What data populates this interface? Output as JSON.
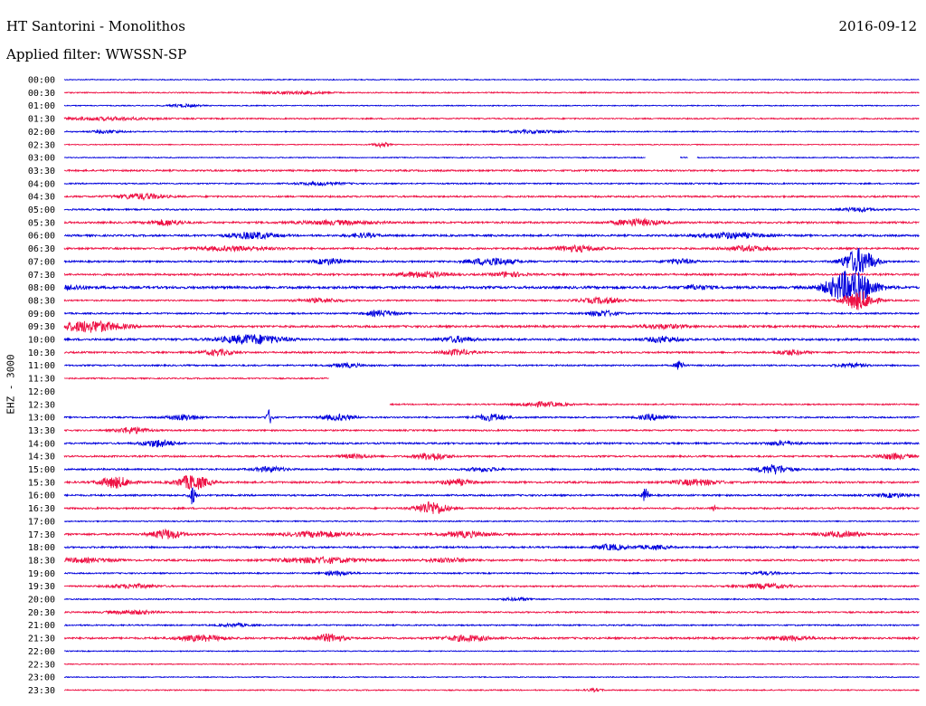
{
  "header": {
    "station": "HT Santorini - Monolithos",
    "date": "2016-09-12",
    "filter": "Applied filter: WWSSN-SP"
  },
  "colors": {
    "even": "#0000dd",
    "odd": "#ee1144"
  },
  "chart_data": {
    "type": "line",
    "title": "HT Santorini - Monolithos",
    "ylabel": "EHZ - 3000",
    "categories": [
      "00:00",
      "00:30",
      "01:00",
      "01:30",
      "02:00",
      "02:30",
      "03:00",
      "03:30",
      "04:00",
      "04:30",
      "05:00",
      "05:30",
      "06:00",
      "06:30",
      "07:00",
      "07:30",
      "08:00",
      "08:30",
      "09:00",
      "09:30",
      "10:00",
      "10:30",
      "11:00",
      "11:30",
      "12:00",
      "12:30",
      "13:00",
      "13:30",
      "14:00",
      "14:30",
      "15:00",
      "15:30",
      "16:00",
      "16:30",
      "17:00",
      "17:30",
      "18:00",
      "18:30",
      "19:00",
      "19:30",
      "20:00",
      "20:30",
      "21:00",
      "21:30",
      "22:00",
      "22:30",
      "23:00",
      "23:30"
    ],
    "traces": [
      {
        "noise": 0.5,
        "events": []
      },
      {
        "noise": 0.6,
        "events": [
          [
            0.27,
            1.5,
            0.04
          ]
        ]
      },
      {
        "noise": 0.5,
        "events": [
          [
            0.14,
            1.5,
            0.02
          ]
        ]
      },
      {
        "noise": 0.7,
        "events": [
          [
            0.05,
            1.5,
            0.06
          ]
        ]
      },
      {
        "noise": 0.6,
        "events": [
          [
            0.05,
            1.5,
            0.02
          ],
          [
            0.55,
            1.5,
            0.04
          ]
        ]
      },
      {
        "noise": 0.5,
        "events": [
          [
            0.37,
            2.5,
            0.01
          ]
        ]
      },
      {
        "noise": 0.5,
        "gaps": [
          [
            0.68,
            0.72
          ],
          [
            0.73,
            0.74
          ]
        ],
        "events": []
      },
      {
        "noise": 0.9,
        "events": []
      },
      {
        "noise": 0.7,
        "events": [
          [
            0.3,
            1.5,
            0.03
          ]
        ]
      },
      {
        "noise": 0.9,
        "events": [
          [
            0.09,
            3,
            0.03
          ]
        ]
      },
      {
        "noise": 0.8,
        "events": [
          [
            0.93,
            2,
            0.02
          ]
        ]
      },
      {
        "noise": 1.0,
        "events": [
          [
            0.12,
            3,
            0.02
          ],
          [
            0.32,
            2,
            0.05
          ],
          [
            0.67,
            3.5,
            0.03
          ]
        ]
      },
      {
        "noise": 1.0,
        "events": [
          [
            0.22,
            3.5,
            0.03
          ],
          [
            0.35,
            2,
            0.02
          ],
          [
            0.78,
            3,
            0.04
          ]
        ]
      },
      {
        "noise": 1.0,
        "events": [
          [
            0.2,
            2,
            0.05
          ],
          [
            0.6,
            3,
            0.03
          ],
          [
            0.8,
            2.5,
            0.03
          ]
        ]
      },
      {
        "noise": 0.9,
        "events": [
          [
            0.31,
            3,
            0.02
          ],
          [
            0.5,
            4,
            0.03
          ],
          [
            0.72,
            2.5,
            0.02
          ],
          [
            0.93,
            14,
            0.02
          ]
        ]
      },
      {
        "noise": 1.0,
        "events": [
          [
            0.42,
            3,
            0.03
          ],
          [
            0.52,
            2.5,
            0.02
          ]
        ]
      },
      {
        "noise": 1.3,
        "events": [
          [
            0.01,
            2,
            0.02
          ],
          [
            0.92,
            18,
            0.03
          ],
          [
            0.74,
            2,
            0.02
          ]
        ]
      },
      {
        "noise": 0.8,
        "events": [
          [
            0.3,
            2,
            0.03
          ],
          [
            0.63,
            3,
            0.03
          ],
          [
            0.93,
            10,
            0.02
          ]
        ]
      },
      {
        "noise": 0.8,
        "events": [
          [
            0.37,
            3,
            0.02
          ],
          [
            0.63,
            3,
            0.02
          ]
        ]
      },
      {
        "noise": 1.1,
        "events": [
          [
            0.03,
            6,
            0.04
          ],
          [
            0.7,
            2,
            0.03
          ]
        ]
      },
      {
        "noise": 1.1,
        "events": [
          [
            0.22,
            5,
            0.04
          ],
          [
            0.46,
            3,
            0.02
          ],
          [
            0.7,
            3,
            0.02
          ]
        ]
      },
      {
        "noise": 0.9,
        "events": [
          [
            0.18,
            3,
            0.02
          ],
          [
            0.46,
            3,
            0.02
          ],
          [
            0.85,
            2.5,
            0.02
          ]
        ]
      },
      {
        "noise": 0.8,
        "events": [
          [
            0.33,
            2,
            0.02
          ],
          [
            0.72,
            6,
            0.005
          ],
          [
            0.92,
            2,
            0.02
          ]
        ]
      },
      {
        "noise": 0.7,
        "end": 0.31,
        "events": []
      },
      {
        "noise": 0.0,
        "gaps": [
          [
            0.0,
            1.0
          ]
        ],
        "events": [
          [
            0.52,
            1,
            0.005
          ]
        ]
      },
      {
        "noise": 0.7,
        "start": 0.38,
        "events": [
          [
            0.56,
            2.5,
            0.03
          ]
        ]
      },
      {
        "noise": 0.8,
        "events": [
          [
            0.14,
            3,
            0.02
          ],
          [
            0.24,
            8,
            0.004
          ],
          [
            0.32,
            3,
            0.02
          ],
          [
            0.5,
            3.5,
            0.02
          ],
          [
            0.69,
            3,
            0.02
          ]
        ]
      },
      {
        "noise": 0.8,
        "events": [
          [
            0.08,
            3.5,
            0.02
          ]
        ]
      },
      {
        "noise": 0.9,
        "events": [
          [
            0.11,
            4,
            0.02
          ],
          [
            0.84,
            2,
            0.02
          ]
        ]
      },
      {
        "noise": 0.9,
        "events": [
          [
            0.34,
            2,
            0.02
          ],
          [
            0.43,
            4,
            0.02
          ],
          [
            0.97,
            3,
            0.02
          ]
        ]
      },
      {
        "noise": 0.9,
        "events": [
          [
            0.24,
            2.5,
            0.02
          ],
          [
            0.49,
            2,
            0.02
          ],
          [
            0.83,
            5,
            0.02
          ]
        ]
      },
      {
        "noise": 1.0,
        "events": [
          [
            0.06,
            6,
            0.02
          ],
          [
            0.15,
            8,
            0.02
          ],
          [
            0.46,
            3,
            0.02
          ],
          [
            0.74,
            3,
            0.03
          ]
        ]
      },
      {
        "noise": 0.9,
        "events": [
          [
            0.15,
            10,
            0.004
          ],
          [
            0.68,
            8,
            0.004
          ],
          [
            0.97,
            2,
            0.02
          ]
        ]
      },
      {
        "noise": 0.9,
        "events": [
          [
            0.43,
            7,
            0.02
          ],
          [
            0.76,
            3,
            0.003
          ]
        ]
      },
      {
        "noise": 0.6,
        "events": []
      },
      {
        "noise": 1.0,
        "events": [
          [
            0.12,
            5,
            0.02
          ],
          [
            0.3,
            3,
            0.04
          ],
          [
            0.47,
            3,
            0.03
          ],
          [
            0.91,
            2.5,
            0.03
          ]
        ]
      },
      {
        "noise": 0.9,
        "events": [
          [
            0.64,
            3,
            0.02
          ],
          [
            0.69,
            2,
            0.02
          ]
        ]
      },
      {
        "noise": 1.0,
        "events": [
          [
            0.02,
            2,
            0.04
          ],
          [
            0.3,
            3,
            0.05
          ],
          [
            0.45,
            2,
            0.03
          ]
        ]
      },
      {
        "noise": 0.7,
        "events": [
          [
            0.32,
            2,
            0.02
          ],
          [
            0.82,
            1.5,
            0.02
          ]
        ]
      },
      {
        "noise": 0.8,
        "events": [
          [
            0.08,
            2,
            0.03
          ],
          [
            0.82,
            2.5,
            0.03
          ]
        ]
      },
      {
        "noise": 0.6,
        "events": [
          [
            0.53,
            1.5,
            0.02
          ]
        ]
      },
      {
        "noise": 0.8,
        "events": [
          [
            0.08,
            2,
            0.03
          ]
        ]
      },
      {
        "noise": 0.7,
        "events": [
          [
            0.2,
            1.5,
            0.02
          ]
        ]
      },
      {
        "noise": 1.0,
        "events": [
          [
            0.16,
            3,
            0.03
          ],
          [
            0.31,
            4,
            0.02
          ],
          [
            0.47,
            3,
            0.03
          ],
          [
            0.85,
            2,
            0.03
          ]
        ]
      },
      {
        "noise": 0.5,
        "events": []
      },
      {
        "noise": 0.5,
        "events": []
      },
      {
        "noise": 0.5,
        "events": []
      },
      {
        "noise": 0.6,
        "events": [
          [
            0.62,
            1.5,
            0.01
          ]
        ]
      }
    ]
  }
}
